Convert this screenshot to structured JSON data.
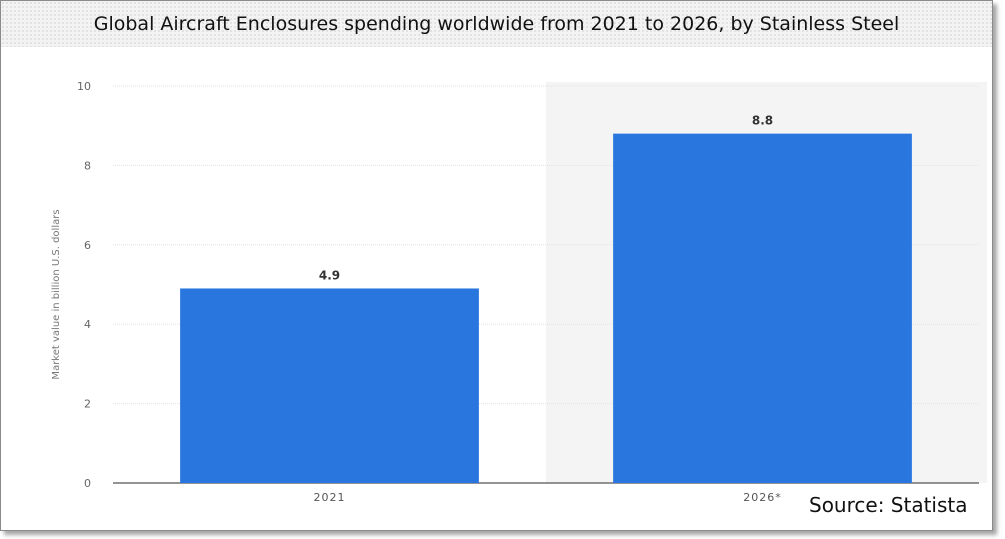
{
  "chart_data": {
    "type": "bar",
    "title": "Global Aircraft Enclosures spending worldwide from 2021 to 2026, by Stainless Steel",
    "xlabel": "",
    "ylabel": "Market value in billion U.S. dollars",
    "categories": [
      "2021",
      "2026*"
    ],
    "values": [
      4.9,
      8.8
    ],
    "value_labels": [
      "4.9",
      "8.8"
    ],
    "ylim": [
      0,
      10
    ],
    "yticks": [
      0,
      2,
      4,
      6,
      8,
      10
    ],
    "grid": true,
    "legend": "none",
    "forecast_shading_from": "2026*",
    "bar_color": "#2a76df",
    "source": "Source: Statista"
  }
}
